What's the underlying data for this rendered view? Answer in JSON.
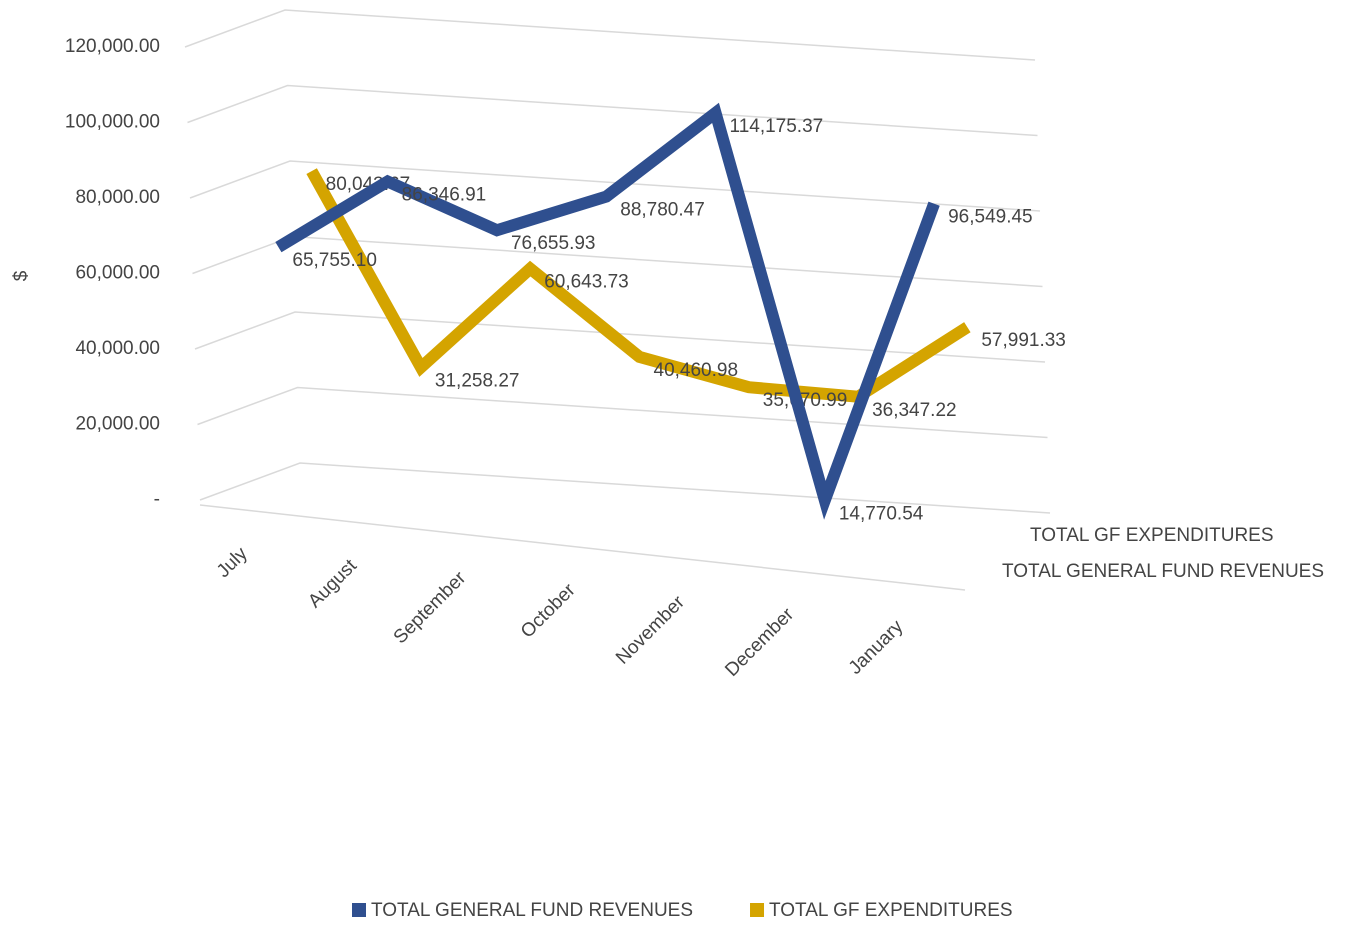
{
  "chart_data": {
    "type": "line3d",
    "y_label": "$",
    "categories": [
      "July",
      "August",
      "September",
      "October",
      "November",
      "December",
      "January"
    ],
    "series": [
      {
        "name": "TOTAL GENERAL FUND REVENUES",
        "color": "#2f4f8f",
        "values": [
          65755.1,
          86346.91,
          76655.93,
          88780.47,
          114175.37,
          14770.54,
          96549.45
        ],
        "value_labels": [
          "65,755.10",
          "86,346.91",
          "76,655.93",
          "88,780.47",
          "114,175.37",
          "14,770.54",
          "96,549.45"
        ],
        "label_color": "#333333"
      },
      {
        "name": "TOTAL GF EXPENDITURES",
        "color": "#d4a400",
        "values": [
          80043.67,
          31258.27,
          60643.73,
          40460.98,
          35670.99,
          36347.22,
          57991.33
        ],
        "value_labels": [
          "80,043.67",
          "31,258.27",
          "60,643.73",
          "40,460.98",
          "35,670.99",
          "36,347.22",
          "57,991.33"
        ],
        "label_color": "#3f5f9f"
      }
    ],
    "ylim": [
      0,
      120000
    ],
    "yticks": [
      {
        "value": 0,
        "label": "-"
      },
      {
        "value": 20000,
        "label": "20,000.00"
      },
      {
        "value": 40000,
        "label": "40,000.00"
      },
      {
        "value": 60000,
        "label": "60,000.00"
      },
      {
        "value": 80000,
        "label": "80,000.00"
      },
      {
        "value": 100000,
        "label": "100,000.00"
      },
      {
        "value": 120000,
        "label": "120,000.00"
      }
    ],
    "grid": true,
    "legend": "bottom"
  }
}
